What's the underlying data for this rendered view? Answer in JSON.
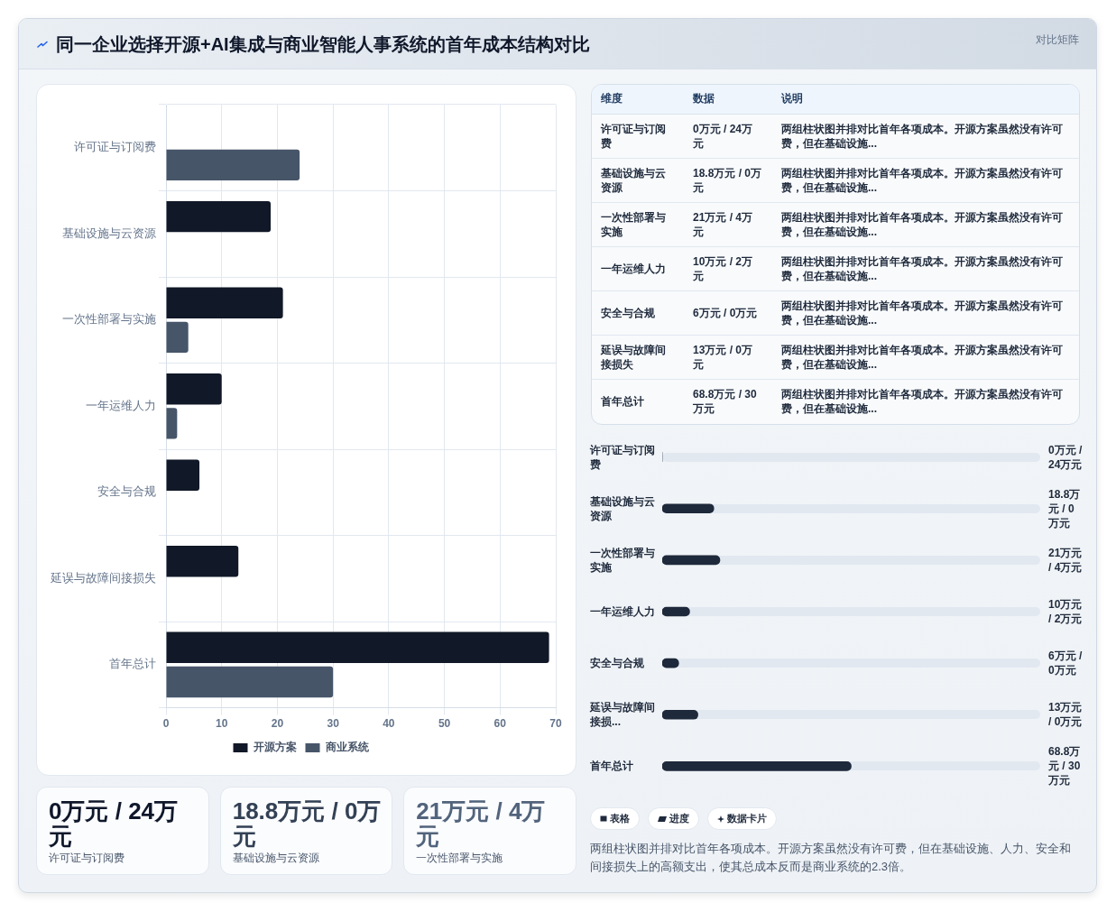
{
  "chart_data": [
    {
      "type": "bar",
      "orientation": "horizontal",
      "title": "同一企业选择开源+AI集成与商业智能人事系统的首年成本结构对比",
      "categories": [
        "许可证与订阅费",
        "基础设施与云资源",
        "一次性部署与实施",
        "一年运维人力",
        "安全与合规",
        "延误与故障间接损失",
        "首年总计"
      ],
      "series": [
        {
          "name": "开源方案",
          "color": "#111827",
          "values": [
            0,
            18.8,
            21,
            10,
            6,
            13,
            68.8
          ]
        },
        {
          "name": "商业系统",
          "color": "#475569",
          "values": [
            24,
            0,
            4,
            2,
            0,
            0,
            30
          ]
        }
      ],
      "xlim": [
        0,
        70
      ],
      "xticks": [
        0,
        10,
        20,
        30,
        40,
        50,
        60,
        70
      ],
      "grid": true,
      "legend": "bottom"
    },
    {
      "type": "other",
      "title": "对比矩阵",
      "categories": [
        "维度",
        "数据",
        "说明"
      ],
      "annotations": [
        "许可证与订阅费",
        "0万元 / 24万元",
        "两组柱状图并排对比首年各项成本。开源方案虽然没有许可费，但在基础设施...",
        "基础设施与云资源",
        "18.8万元 / 0万元",
        "两组柱状图并排对比首年各项成本。开源方案虽然没有许可费，但在基础设施...",
        "一次性部署与实施",
        "21万元 / 4万元",
        "两组柱状图并排对比首年各项成本。开源方案虽然没有许可费，但在基础设施...",
        "一年运维人力",
        "10万元 / 2万元",
        "两组柱状图并排对比首年各项成本。开源方案虽然没有许可费，但在基础设施...",
        "安全与合规",
        "6万元 / 0万元",
        "两组柱状图并排对比首年各项成本。开源方案虽然没有许可费，但在基础设施...",
        "延误与故障间接损失",
        "13万元 / 0万元",
        "两组柱状图并排对比首年各项成本。开源方案虽然没有许可费，但在基础设施...",
        "首年总计",
        "68.8万元 / 30万元",
        "两组柱状图并排对比首年各项成本。开源方案虽然没有许可费，但在基础设施..."
      ]
    },
    {
      "type": "bar",
      "orientation": "horizontal",
      "categories": [
        "许可证与订阅费",
        "基础设施与云资源",
        "一次性部署与实施",
        "一年运维人力",
        "安全与合规",
        "延误与故障间接损...",
        "首年总计"
      ],
      "values": [
        0,
        18.8,
        21,
        10,
        6,
        13,
        68.8
      ],
      "value_labels": [
        "0万元 / 24万元",
        "18.8万元 / 0万元",
        "21万元 / 4万元",
        "10万元 / 2万元",
        "6万元 / 0万元",
        "13万元 / 0万元",
        "68.8万元 / 30万元"
      ],
      "color": "#1e293b",
      "xlim": [
        0,
        137.6
      ],
      "tick_labels": "y"
    },
    {
      "type": "other",
      "categories": [
        "许可证与订阅费",
        "基础设施与云资源",
        "一次性部署与实施"
      ],
      "annotations": [
        "0万元 / 24万元",
        "18.8万元 / 0万元",
        "21万元 / 4万元"
      ]
    },
    {
      "type": "other",
      "categories": [
        "表格",
        "进度",
        "数据卡片"
      ],
      "annotations": [
        "两组柱状图并排对比首年各项成本。开源方案虽然没有许可费，但在基础设施、人力、安全和间接损失上的高额支出，使其总成本反而是商业系统的2.3倍。"
      ]
    }
  ]
}
